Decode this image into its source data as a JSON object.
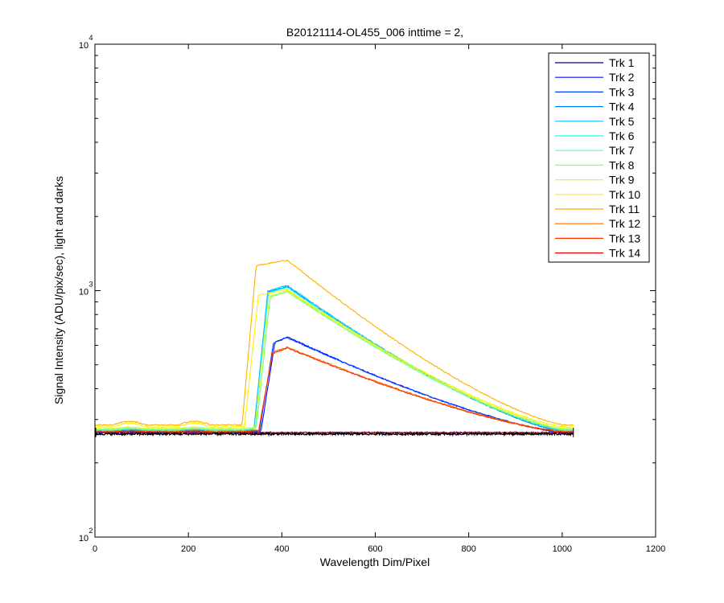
{
  "chart_data": {
    "type": "line",
    "title": "B20121114-OL455_006 inttime = 2,",
    "xlabel": "Wavelength Dim/Pixel",
    "ylabel": "Signal Intensity (ADU/pix/sec), light and darks",
    "xlim": [
      0,
      1200
    ],
    "ylim": [
      100,
      10000
    ],
    "yscale": "log",
    "x_ticks": [
      0,
      200,
      400,
      600,
      800,
      1000,
      1200
    ],
    "y_ticks": [
      {
        "value": 100,
        "base": "10",
        "exp": "2"
      },
      {
        "value": 1000,
        "base": "10",
        "exp": "3"
      },
      {
        "value": 10000,
        "base": "10",
        "exp": "4"
      }
    ],
    "grid": false,
    "legend_position": "top-right",
    "series": [
      {
        "name": "Trk 1",
        "color": "#00008f",
        "profile": "dark",
        "baseline": 265,
        "peak": 265
      },
      {
        "name": "Trk 2",
        "color": "#0010ff",
        "profile": "medium",
        "baseline": 265,
        "peak": 650,
        "onset": 355
      },
      {
        "name": "Trk 3",
        "color": "#0040ff",
        "profile": "medium",
        "baseline": 266,
        "peak": 645,
        "onset": 352
      },
      {
        "name": "Trk 4",
        "color": "#0080ff",
        "profile": "bright",
        "baseline": 268,
        "peak": 1040,
        "onset": 342
      },
      {
        "name": "Trk 5",
        "color": "#00bfff",
        "profile": "bright",
        "baseline": 270,
        "peak": 1050,
        "onset": 340
      },
      {
        "name": "Trk 6",
        "color": "#10ffef",
        "profile": "bright",
        "baseline": 272,
        "peak": 1030,
        "onset": 342
      },
      {
        "name": "Trk 7",
        "color": "#50ffaf",
        "profile": "bright",
        "baseline": 272,
        "peak": 995,
        "onset": 345
      },
      {
        "name": "Trk 8",
        "color": "#8fff70",
        "profile": "bright",
        "baseline": 274,
        "peak": 990,
        "onset": 345
      },
      {
        "name": "Trk 9",
        "color": "#cfff30",
        "profile": "bright",
        "baseline": 276,
        "peak": 1000,
        "onset": 342
      },
      {
        "name": "Trk 10",
        "color": "#ffef00",
        "profile": "bright",
        "baseline": 280,
        "peak": 1010,
        "onset": 320
      },
      {
        "name": "Trk 11",
        "color": "#ffaf00",
        "profile": "brightest",
        "baseline": 285,
        "peak": 1330,
        "onset": 315
      },
      {
        "name": "Trk 12",
        "color": "#ff7000",
        "profile": "medium",
        "baseline": 268,
        "peak": 590,
        "onset": 350
      },
      {
        "name": "Trk 13",
        "color": "#ff3000",
        "profile": "medium",
        "baseline": 267,
        "peak": 585,
        "onset": 350
      },
      {
        "name": "Trk 14",
        "color": "#ef0000",
        "profile": "dark",
        "baseline": 266,
        "peak": 266
      }
    ],
    "darks": {
      "color": "#000000",
      "level": 262,
      "x_range": [
        0,
        1024
      ]
    }
  }
}
